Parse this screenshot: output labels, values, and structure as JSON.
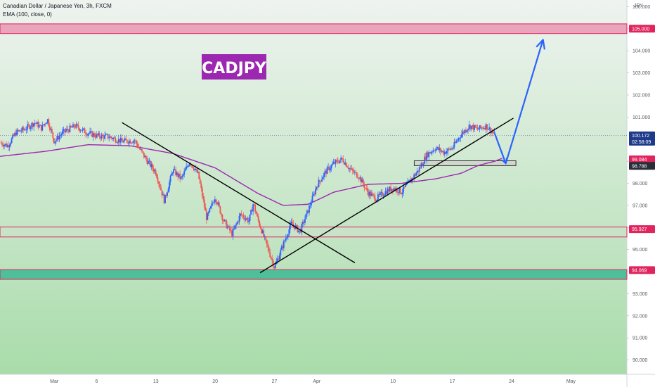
{
  "header": {
    "title": "Canadian Dollar / Japanese Yen, 3h, FXCM",
    "indicator": "EMA (100, close, 0)"
  },
  "chart_data": {
    "type": "candlestick",
    "symbol_banner": "CADJPY",
    "y_axis": {
      "unit_label": "JPY",
      "ticks": [
        106.0,
        105.0,
        104.0,
        103.0,
        102.0,
        101.0,
        99.0,
        98.0,
        97.0,
        96.0,
        95.0,
        94.0,
        93.0,
        92.0,
        91.0,
        90.0
      ],
      "tick_labels": [
        "106.000",
        "105.000",
        "104.000",
        "103.000",
        "102.000",
        "101.000",
        "99.000",
        "98.000",
        "97.000",
        "96.000",
        "95.000",
        "94.000",
        "93.000",
        "92.000",
        "91.000",
        "90.000"
      ],
      "range": [
        89.35,
        106.3
      ]
    },
    "x_axis": {
      "ticks": [
        {
          "label": "Mar",
          "day": 1
        },
        {
          "label": "6",
          "day": 6
        },
        {
          "label": "13",
          "day": 13
        },
        {
          "label": "20",
          "day": 20
        },
        {
          "label": "27",
          "day": 27
        },
        {
          "label": "Apr",
          "day": 32
        },
        {
          "label": "10",
          "day": 41
        },
        {
          "label": "17",
          "day": 48
        },
        {
          "label": "24",
          "day": 55
        },
        {
          "label": "May",
          "day": 62
        }
      ],
      "range_days": [
        -5.4,
        68.6
      ]
    },
    "price_path": [
      [
        -5.4,
        99.85
      ],
      [
        -4.5,
        99.7
      ],
      [
        -3.5,
        100.3
      ],
      [
        -2.5,
        100.45
      ],
      [
        -1.3,
        100.75
      ],
      [
        -0.5,
        100.5
      ],
      [
        0.2,
        100.9
      ],
      [
        1.0,
        99.9
      ],
      [
        2.0,
        100.3
      ],
      [
        3.5,
        100.6
      ],
      [
        4.8,
        100.3
      ],
      [
        6.0,
        100.15
      ],
      [
        7.5,
        100.1
      ],
      [
        9.0,
        99.9
      ],
      [
        10.5,
        99.95
      ],
      [
        11.0,
        99.6
      ],
      [
        12.0,
        99.0
      ],
      [
        13.0,
        98.5
      ],
      [
        14.0,
        97.2
      ],
      [
        15.0,
        98.6
      ],
      [
        16.0,
        98.2
      ],
      [
        17.0,
        99.0
      ],
      [
        18.0,
        98.4
      ],
      [
        19.0,
        96.4
      ],
      [
        20.0,
        97.4
      ],
      [
        21.0,
        96.3
      ],
      [
        22.0,
        95.7
      ],
      [
        23.0,
        96.6
      ],
      [
        24.0,
        96.3
      ],
      [
        24.5,
        97.1
      ],
      [
        25.0,
        96.4
      ],
      [
        26.0,
        95.3
      ],
      [
        27.0,
        94.2
      ],
      [
        28.0,
        95.2
      ],
      [
        29.0,
        96.2
      ],
      [
        30.0,
        95.8
      ],
      [
        31.0,
        96.8
      ],
      [
        32.0,
        97.9
      ],
      [
        33.0,
        98.5
      ],
      [
        34.0,
        98.9
      ],
      [
        35.0,
        99.1
      ],
      [
        36.0,
        98.6
      ],
      [
        37.0,
        98.3
      ],
      [
        38.0,
        97.6
      ],
      [
        39.0,
        97.3
      ],
      [
        40.0,
        97.6
      ],
      [
        41.0,
        97.8
      ],
      [
        42.0,
        97.6
      ],
      [
        43.0,
        98.1
      ],
      [
        44.0,
        98.6
      ],
      [
        45.0,
        99.3
      ],
      [
        46.0,
        99.6
      ],
      [
        47.0,
        99.4
      ],
      [
        48.0,
        99.6
      ],
      [
        49.0,
        100.2
      ],
      [
        50.0,
        100.6
      ],
      [
        51.0,
        100.45
      ],
      [
        52.0,
        100.6
      ],
      [
        53.0,
        100.2
      ]
    ],
    "ema100_path": [
      [
        -5.4,
        99.22
      ],
      [
        0,
        99.45
      ],
      [
        5,
        99.75
      ],
      [
        10,
        99.7
      ],
      [
        15,
        99.35
      ],
      [
        20,
        98.7
      ],
      [
        25,
        97.55
      ],
      [
        28,
        97.0
      ],
      [
        31,
        97.05
      ],
      [
        34,
        97.6
      ],
      [
        38,
        97.95
      ],
      [
        42,
        98.0
      ],
      [
        46,
        98.2
      ],
      [
        49,
        98.45
      ],
      [
        51,
        98.8
      ],
      [
        53,
        99.0
      ],
      [
        54,
        99.15
      ]
    ],
    "zones": [
      {
        "name": "supply-zone",
        "from": 104.78,
        "to": 105.22,
        "color": "#e8a5bc",
        "border": "#e0245e"
      },
      {
        "name": "support-zone",
        "from": 95.57,
        "to": 96.02,
        "color": "#c9e3c9",
        "border": "#e0245e"
      },
      {
        "name": "demand-zone",
        "from": 93.65,
        "to": 94.09,
        "color": "#4fbf9a",
        "border": "#e0245e"
      },
      {
        "name": "retest-box",
        "from": 98.8,
        "to": 99.02,
        "day_from": 43.5,
        "day_to": 55.5,
        "color": "#d0d7cd",
        "border": "#333333"
      }
    ],
    "trendlines": [
      {
        "name": "descending-trendline",
        "from": [
          9.0,
          100.75
        ],
        "to": [
          36.5,
          94.4
        ],
        "color": "#000000"
      },
      {
        "name": "ascending-trendline",
        "from": [
          25.3,
          93.95
        ],
        "to": [
          55.2,
          100.95
        ],
        "color": "#000000"
      },
      {
        "name": "projection-arrow",
        "points": [
          [
            53.0,
            100.25
          ],
          [
            54.3,
            98.9
          ],
          [
            58.7,
            104.5
          ]
        ],
        "color": "#2962ff"
      }
    ],
    "price_tags": [
      {
        "name": "tag-105",
        "label": "105.000",
        "price": 105.0,
        "color": "#e0245e"
      },
      {
        "name": "tag-current",
        "label": "100.172",
        "sublabel": "02:58:09",
        "price": 100.172,
        "color": "#1e3a8a"
      },
      {
        "name": "tag-99084",
        "label": "99.084",
        "price": 99.084,
        "color": "#e0245e"
      },
      {
        "name": "tag-98788",
        "label": "98.788",
        "price": 98.788,
        "color": "#2a2e39"
      },
      {
        "name": "tag-95927",
        "label": "95.927",
        "price": 95.927,
        "color": "#e0245e"
      },
      {
        "name": "tag-94069",
        "label": "94.069",
        "price": 94.069,
        "color": "#e0245e"
      }
    ],
    "colors": {
      "bull": "#2962ff",
      "bear": "#ef5350",
      "ema": "#9c27b0",
      "banner": "#9c27b0",
      "bg_top": "#eef3ef",
      "bg_bottom": "#a9dcaa",
      "axis_bg": "#ffffff"
    }
  }
}
